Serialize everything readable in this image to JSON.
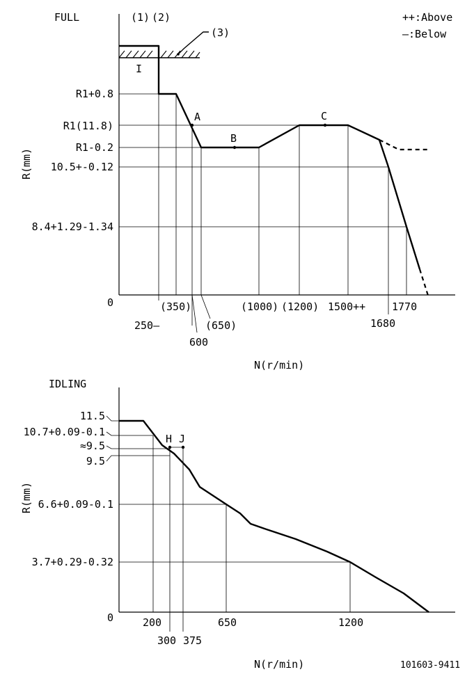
{
  "legend": {
    "above": "++:Above",
    "below": "—:Below"
  },
  "full": {
    "title": "FULL",
    "markers": {
      "m1": "(1)",
      "m2": "(2)",
      "m3": "(3)",
      "i": "I"
    },
    "y_axis_label": "R(mm)",
    "x_axis_label": "N(r/min)",
    "y_ticks": [
      "R1+0.8",
      "R1(11.8)",
      "R1-0.2",
      "10.5+-0.12",
      "8.4+1.29-1.34",
      "0"
    ],
    "x_ticks": [
      "250—",
      "(350)",
      "600",
      "(650)",
      "(1000)",
      "(1200)",
      "1500++",
      "1680",
      "1770"
    ],
    "points": {
      "a": "A",
      "b": "B",
      "c": "C"
    }
  },
  "idling": {
    "title": "IDLING",
    "y_axis_label": "R(mm)",
    "x_axis_label": "N(r/min)",
    "y_ticks": [
      "11.5",
      "10.7+0.09-0.1",
      "≈9.5",
      "9.5",
      "6.6+0.09-0.1",
      "3.7+0.29-0.32",
      "0"
    ],
    "x_ticks": [
      "200",
      "300",
      "375",
      "650",
      "1200"
    ],
    "points": {
      "h": "H",
      "j": "J"
    }
  },
  "part_number": "101603-9411",
  "chart_data": [
    {
      "type": "line",
      "title": "FULL",
      "xlabel": "N(r/min)",
      "ylabel": "R(mm)",
      "series": [
        {
          "x": [
            250,
            250,
            350,
            600,
            650,
            1000,
            1200,
            1500,
            1680,
            1770
          ],
          "y": [
            12.6,
            12.6,
            12.6,
            11.8,
            11.6,
            11.6,
            11.8,
            11.8,
            10.5,
            8.4
          ]
        }
      ]
    },
    {
      "type": "line",
      "title": "IDLING",
      "xlabel": "N(r/min)",
      "ylabel": "R(mm)",
      "series": [
        {
          "x": [
            200,
            300,
            375,
            650,
            1200
          ],
          "y": [
            10.7,
            9.5,
            9.5,
            6.6,
            3.7
          ]
        }
      ]
    }
  ]
}
